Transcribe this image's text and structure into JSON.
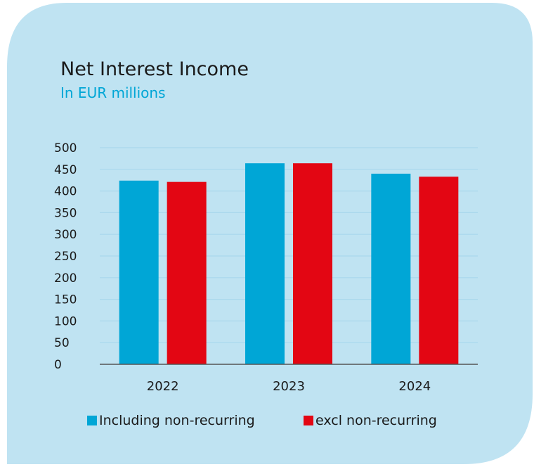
{
  "chart_data": {
    "type": "bar",
    "title": "Net Interest Income",
    "subtitle": "In EUR millions",
    "categories": [
      "2022",
      "2023",
      "2024"
    ],
    "series": [
      {
        "name": "Including non-recurring",
        "values": [
          424,
          464,
          440
        ],
        "color": "#00a6d6"
      },
      {
        "name": "excl non-recurring",
        "values": [
          421,
          464,
          433
        ],
        "color": "#e30613"
      }
    ],
    "ylim": [
      0,
      500
    ],
    "yticks": [
      0,
      50,
      100,
      150,
      200,
      250,
      300,
      350,
      400,
      450,
      500
    ],
    "grid": true,
    "legend_position": "bottom"
  },
  "colors": {
    "background": "#bfe3f2",
    "subtitle": "#00a6d6",
    "gridline": "#a9d8ec",
    "axis": "#555555"
  }
}
